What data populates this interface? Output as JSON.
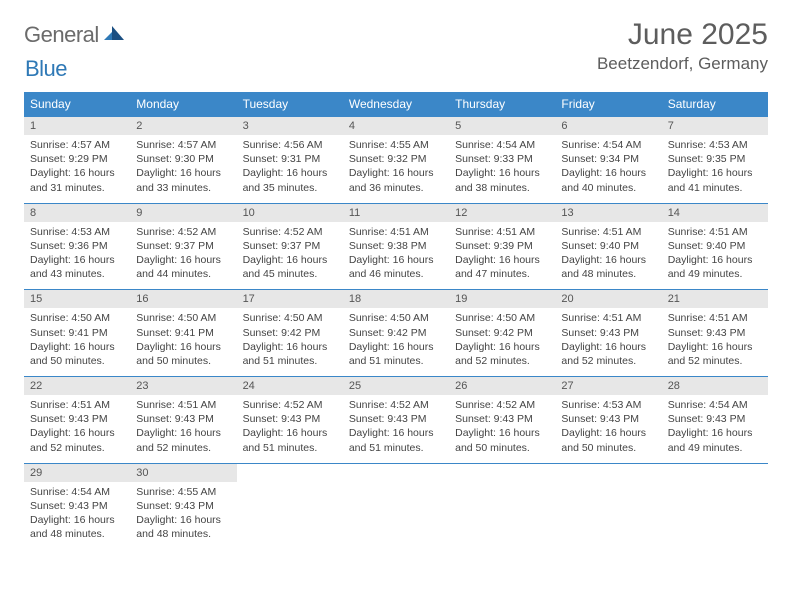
{
  "brand": {
    "word1": "General",
    "word2": "Blue"
  },
  "title": "June 2025",
  "location": "Beetzendorf, Germany",
  "colors": {
    "header_bg": "#3b87c8",
    "header_text": "#ffffff",
    "daynum_bg": "#e7e7e7",
    "rule": "#3b87c8",
    "text": "#444444",
    "title_text": "#5d5d5d",
    "logo_gray": "#6b6b6b",
    "logo_blue": "#2f79b6"
  },
  "fonts": {
    "title_size_pt": 22,
    "location_size_pt": 13,
    "header_size_pt": 9,
    "body_size_pt": 8
  },
  "weekdays": [
    "Sunday",
    "Monday",
    "Tuesday",
    "Wednesday",
    "Thursday",
    "Friday",
    "Saturday"
  ],
  "weeks": [
    [
      {
        "n": "1",
        "sr": "Sunrise: 4:57 AM",
        "ss": "Sunset: 9:29 PM",
        "dl": "Daylight: 16 hours and 31 minutes."
      },
      {
        "n": "2",
        "sr": "Sunrise: 4:57 AM",
        "ss": "Sunset: 9:30 PM",
        "dl": "Daylight: 16 hours and 33 minutes."
      },
      {
        "n": "3",
        "sr": "Sunrise: 4:56 AM",
        "ss": "Sunset: 9:31 PM",
        "dl": "Daylight: 16 hours and 35 minutes."
      },
      {
        "n": "4",
        "sr": "Sunrise: 4:55 AM",
        "ss": "Sunset: 9:32 PM",
        "dl": "Daylight: 16 hours and 36 minutes."
      },
      {
        "n": "5",
        "sr": "Sunrise: 4:54 AM",
        "ss": "Sunset: 9:33 PM",
        "dl": "Daylight: 16 hours and 38 minutes."
      },
      {
        "n": "6",
        "sr": "Sunrise: 4:54 AM",
        "ss": "Sunset: 9:34 PM",
        "dl": "Daylight: 16 hours and 40 minutes."
      },
      {
        "n": "7",
        "sr": "Sunrise: 4:53 AM",
        "ss": "Sunset: 9:35 PM",
        "dl": "Daylight: 16 hours and 41 minutes."
      }
    ],
    [
      {
        "n": "8",
        "sr": "Sunrise: 4:53 AM",
        "ss": "Sunset: 9:36 PM",
        "dl": "Daylight: 16 hours and 43 minutes."
      },
      {
        "n": "9",
        "sr": "Sunrise: 4:52 AM",
        "ss": "Sunset: 9:37 PM",
        "dl": "Daylight: 16 hours and 44 minutes."
      },
      {
        "n": "10",
        "sr": "Sunrise: 4:52 AM",
        "ss": "Sunset: 9:37 PM",
        "dl": "Daylight: 16 hours and 45 minutes."
      },
      {
        "n": "11",
        "sr": "Sunrise: 4:51 AM",
        "ss": "Sunset: 9:38 PM",
        "dl": "Daylight: 16 hours and 46 minutes."
      },
      {
        "n": "12",
        "sr": "Sunrise: 4:51 AM",
        "ss": "Sunset: 9:39 PM",
        "dl": "Daylight: 16 hours and 47 minutes."
      },
      {
        "n": "13",
        "sr": "Sunrise: 4:51 AM",
        "ss": "Sunset: 9:40 PM",
        "dl": "Daylight: 16 hours and 48 minutes."
      },
      {
        "n": "14",
        "sr": "Sunrise: 4:51 AM",
        "ss": "Sunset: 9:40 PM",
        "dl": "Daylight: 16 hours and 49 minutes."
      }
    ],
    [
      {
        "n": "15",
        "sr": "Sunrise: 4:50 AM",
        "ss": "Sunset: 9:41 PM",
        "dl": "Daylight: 16 hours and 50 minutes."
      },
      {
        "n": "16",
        "sr": "Sunrise: 4:50 AM",
        "ss": "Sunset: 9:41 PM",
        "dl": "Daylight: 16 hours and 50 minutes."
      },
      {
        "n": "17",
        "sr": "Sunrise: 4:50 AM",
        "ss": "Sunset: 9:42 PM",
        "dl": "Daylight: 16 hours and 51 minutes."
      },
      {
        "n": "18",
        "sr": "Sunrise: 4:50 AM",
        "ss": "Sunset: 9:42 PM",
        "dl": "Daylight: 16 hours and 51 minutes."
      },
      {
        "n": "19",
        "sr": "Sunrise: 4:50 AM",
        "ss": "Sunset: 9:42 PM",
        "dl": "Daylight: 16 hours and 52 minutes."
      },
      {
        "n": "20",
        "sr": "Sunrise: 4:51 AM",
        "ss": "Sunset: 9:43 PM",
        "dl": "Daylight: 16 hours and 52 minutes."
      },
      {
        "n": "21",
        "sr": "Sunrise: 4:51 AM",
        "ss": "Sunset: 9:43 PM",
        "dl": "Daylight: 16 hours and 52 minutes."
      }
    ],
    [
      {
        "n": "22",
        "sr": "Sunrise: 4:51 AM",
        "ss": "Sunset: 9:43 PM",
        "dl": "Daylight: 16 hours and 52 minutes."
      },
      {
        "n": "23",
        "sr": "Sunrise: 4:51 AM",
        "ss": "Sunset: 9:43 PM",
        "dl": "Daylight: 16 hours and 52 minutes."
      },
      {
        "n": "24",
        "sr": "Sunrise: 4:52 AM",
        "ss": "Sunset: 9:43 PM",
        "dl": "Daylight: 16 hours and 51 minutes."
      },
      {
        "n": "25",
        "sr": "Sunrise: 4:52 AM",
        "ss": "Sunset: 9:43 PM",
        "dl": "Daylight: 16 hours and 51 minutes."
      },
      {
        "n": "26",
        "sr": "Sunrise: 4:52 AM",
        "ss": "Sunset: 9:43 PM",
        "dl": "Daylight: 16 hours and 50 minutes."
      },
      {
        "n": "27",
        "sr": "Sunrise: 4:53 AM",
        "ss": "Sunset: 9:43 PM",
        "dl": "Daylight: 16 hours and 50 minutes."
      },
      {
        "n": "28",
        "sr": "Sunrise: 4:54 AM",
        "ss": "Sunset: 9:43 PM",
        "dl": "Daylight: 16 hours and 49 minutes."
      }
    ],
    [
      {
        "n": "29",
        "sr": "Sunrise: 4:54 AM",
        "ss": "Sunset: 9:43 PM",
        "dl": "Daylight: 16 hours and 48 minutes."
      },
      {
        "n": "30",
        "sr": "Sunrise: 4:55 AM",
        "ss": "Sunset: 9:43 PM",
        "dl": "Daylight: 16 hours and 48 minutes."
      },
      null,
      null,
      null,
      null,
      null
    ]
  ]
}
